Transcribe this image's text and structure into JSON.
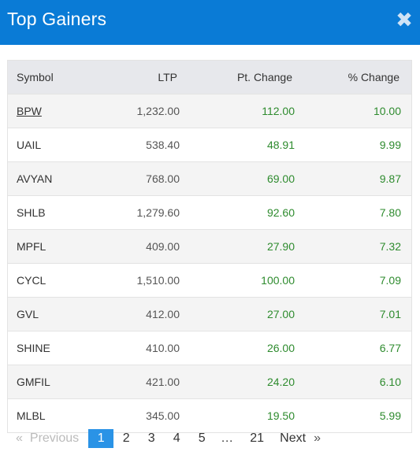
{
  "header": {
    "title": "Top Gainers",
    "close_glyph": "✖"
  },
  "table": {
    "columns": {
      "symbol": "Symbol",
      "ltp": "LTP",
      "pt_change": "Pt. Change",
      "pct_change": "% Change"
    },
    "rows": [
      {
        "symbol": "BPW",
        "ltp": "1,232.00",
        "pt_change": "112.00",
        "pct_change": "10.00"
      },
      {
        "symbol": "UAIL",
        "ltp": "538.40",
        "pt_change": "48.91",
        "pct_change": "9.99"
      },
      {
        "symbol": "AVYAN",
        "ltp": "768.00",
        "pt_change": "69.00",
        "pct_change": "9.87"
      },
      {
        "symbol": "SHLB",
        "ltp": "1,279.60",
        "pt_change": "92.60",
        "pct_change": "7.80"
      },
      {
        "symbol": "MPFL",
        "ltp": "409.00",
        "pt_change": "27.90",
        "pct_change": "7.32"
      },
      {
        "symbol": "CYCL",
        "ltp": "1,510.00",
        "pt_change": "100.00",
        "pct_change": "7.09"
      },
      {
        "symbol": "GVL",
        "ltp": "412.00",
        "pt_change": "27.00",
        "pct_change": "7.01"
      },
      {
        "symbol": "SHINE",
        "ltp": "410.00",
        "pt_change": "26.00",
        "pct_change": "6.77"
      },
      {
        "symbol": "GMFIL",
        "ltp": "421.00",
        "pt_change": "24.20",
        "pct_change": "6.10"
      },
      {
        "symbol": "MLBL",
        "ltp": "345.00",
        "pt_change": "19.50",
        "pct_change": "5.99"
      }
    ]
  },
  "pagination": {
    "prev_arrow": "«",
    "prev_label": "Previous",
    "pages": [
      "1",
      "2",
      "3",
      "4",
      "5",
      "…",
      "21"
    ],
    "active_page": "1",
    "next_label": "Next",
    "next_arrow": "»"
  },
  "colors": {
    "header_bg": "#0a7bd6",
    "gain": "#2e8b2e",
    "active_page": "#2a93e6"
  }
}
